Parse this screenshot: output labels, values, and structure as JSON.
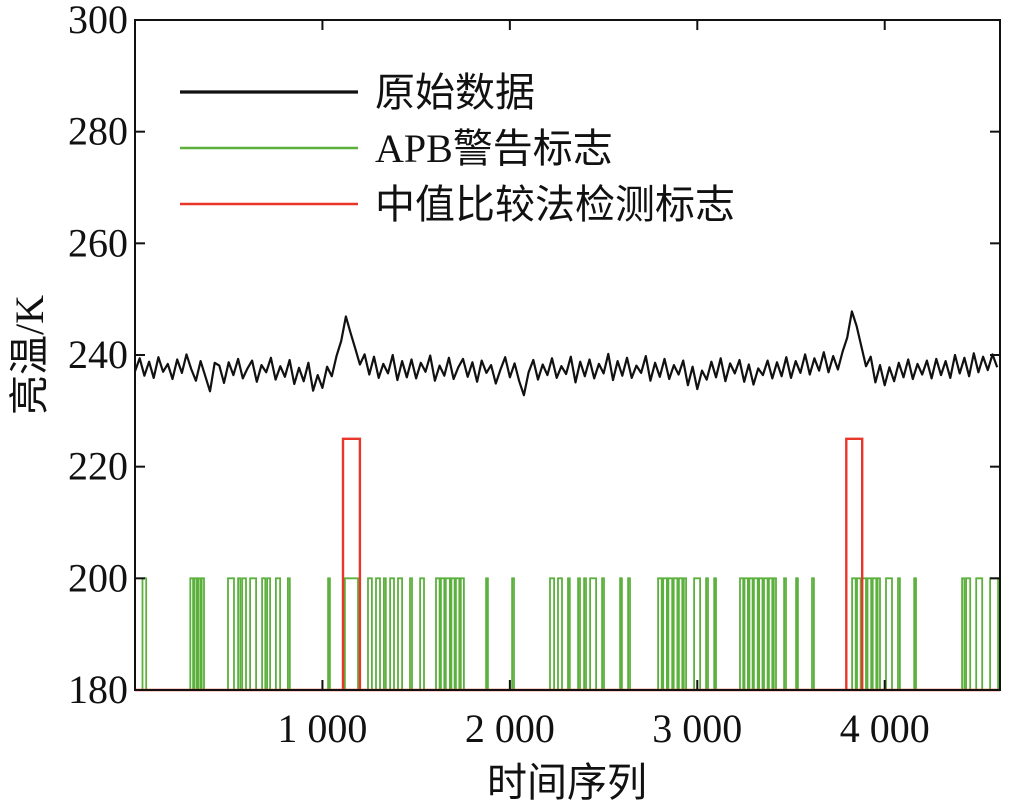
{
  "chart_data": {
    "type": "line",
    "xlabel": "时间序列",
    "ylabel": "亮温/K",
    "xlim": [
      0,
      4615
    ],
    "ylim": [
      180,
      300
    ],
    "xticks": [
      1000,
      2000,
      3000,
      4000
    ],
    "xtick_labels": [
      "1 000",
      "2 000",
      "3 000",
      "4 000"
    ],
    "yticks": [
      180,
      200,
      220,
      240,
      260,
      280,
      300
    ],
    "ytick_labels": [
      "180",
      "200",
      "220",
      "240",
      "260",
      "280",
      "300"
    ],
    "grid": false,
    "legend_position": "top-left",
    "series": [
      {
        "name": "原始数据",
        "type": "line",
        "color": "#111111",
        "x": [
          0,
          25,
          50,
          75,
          100,
          125,
          150,
          175,
          200,
          225,
          250,
          275,
          300,
          325,
          350,
          375,
          400,
          425,
          450,
          475,
          500,
          525,
          550,
          575,
          600,
          625,
          650,
          675,
          700,
          725,
          750,
          775,
          800,
          825,
          850,
          875,
          900,
          925,
          950,
          975,
          1000,
          1025,
          1050,
          1075,
          1100,
          1125,
          1150,
          1175,
          1200,
          1225,
          1250,
          1275,
          1300,
          1325,
          1350,
          1375,
          1400,
          1425,
          1450,
          1475,
          1500,
          1525,
          1550,
          1575,
          1600,
          1625,
          1650,
          1675,
          1700,
          1725,
          1750,
          1775,
          1800,
          1825,
          1850,
          1875,
          1900,
          1925,
          1950,
          1975,
          2000,
          2025,
          2050,
          2075,
          2100,
          2125,
          2150,
          2175,
          2200,
          2225,
          2250,
          2275,
          2300,
          2325,
          2350,
          2375,
          2400,
          2425,
          2450,
          2475,
          2500,
          2525,
          2550,
          2575,
          2600,
          2625,
          2650,
          2675,
          2700,
          2725,
          2750,
          2775,
          2800,
          2825,
          2850,
          2875,
          2900,
          2925,
          2950,
          2975,
          3000,
          3025,
          3050,
          3075,
          3100,
          3125,
          3150,
          3175,
          3200,
          3225,
          3250,
          3275,
          3300,
          3325,
          3350,
          3375,
          3400,
          3425,
          3450,
          3475,
          3500,
          3525,
          3550,
          3575,
          3600,
          3625,
          3650,
          3675,
          3700,
          3725,
          3750,
          3775,
          3800,
          3825,
          3850,
          3875,
          3900,
          3925,
          3950,
          3975,
          4000,
          4025,
          4050,
          4075,
          4100,
          4125,
          4150,
          4175,
          4200,
          4225,
          4250,
          4275,
          4300,
          4325,
          4350,
          4375,
          4400,
          4425,
          4450,
          4475,
          4500,
          4525,
          4550,
          4575,
          4600
        ],
        "y": [
          237.1,
          239.4,
          236.3,
          238.8,
          235.9,
          239.6,
          237.0,
          238.4,
          235.7,
          239.2,
          236.8,
          240.1,
          237.5,
          235.4,
          238.9,
          236.2,
          233.5,
          238.6,
          238.1,
          235.0,
          238.7,
          236.4,
          239.3,
          235.8,
          237.6,
          239.0,
          235.2,
          238.2,
          236.9,
          239.5,
          235.6,
          238.0,
          236.1,
          239.1,
          234.8,
          237.7,
          235.3,
          238.6,
          233.6,
          236.4,
          234.1,
          237.9,
          236.2,
          239.8,
          242.5,
          246.9,
          244.0,
          241.2,
          238.3,
          240.1,
          236.5,
          239.7,
          235.9,
          238.4,
          236.7,
          240.0,
          235.5,
          238.9,
          236.0,
          239.2,
          235.8,
          238.6,
          237.0,
          239.9,
          235.4,
          238.1,
          236.3,
          239.5,
          235.7,
          237.8,
          239.3,
          236.1,
          238.7,
          235.2,
          239.0,
          236.8,
          238.2,
          234.9,
          237.4,
          239.6,
          236.0,
          238.5,
          235.3,
          232.8,
          236.9,
          239.1,
          235.6,
          238.3,
          236.4,
          239.4,
          235.9,
          238.0,
          236.6,
          239.7,
          235.1,
          238.8,
          236.2,
          239.2,
          235.8,
          238.4,
          236.7,
          240.2,
          235.5,
          238.9,
          236.3,
          239.5,
          235.9,
          238.1,
          236.8,
          239.8,
          235.4,
          238.6,
          236.1,
          239.3,
          235.7,
          238.2,
          236.5,
          239.0,
          234.6,
          237.9,
          233.9,
          237.2,
          235.6,
          238.8,
          236.0,
          239.4,
          235.3,
          238.5,
          236.7,
          239.1,
          235.2,
          238.3,
          234.7,
          237.6,
          236.4,
          239.0,
          235.8,
          238.7,
          236.2,
          239.6,
          235.9,
          238.9,
          236.8,
          240.1,
          236.5,
          239.4,
          237.2,
          240.5,
          236.9,
          239.8,
          237.4,
          240.6,
          243.1,
          247.8,
          245.2,
          241.6,
          238.0,
          239.7,
          235.1,
          238.2,
          234.6,
          237.8,
          235.3,
          238.6,
          236.0,
          239.2,
          235.7,
          238.4,
          236.5,
          239.0,
          235.8,
          239.3,
          236.4,
          238.9,
          235.9,
          240.0,
          236.7,
          239.5,
          236.2,
          240.3,
          236.9,
          239.7,
          237.3,
          240.1,
          237.8
        ]
      },
      {
        "name": "APB警告标志",
        "type": "step",
        "color": "#5cb03e",
        "base": 180,
        "level": 200,
        "intervals": [
          [
            40,
            60
          ],
          [
            295,
            310
          ],
          [
            318,
            330
          ],
          [
            338,
            350
          ],
          [
            356,
            368
          ],
          [
            496,
            528
          ],
          [
            550,
            562
          ],
          [
            572,
            592
          ],
          [
            614,
            646
          ],
          [
            678,
            695
          ],
          [
            705,
            721
          ],
          [
            752,
            774
          ],
          [
            816,
            826
          ],
          [
            1030,
            1040
          ],
          [
            1120,
            1190
          ],
          [
            1243,
            1264
          ],
          [
            1286,
            1307
          ],
          [
            1328,
            1338
          ],
          [
            1361,
            1382
          ],
          [
            1403,
            1425
          ],
          [
            1467,
            1478
          ],
          [
            1521,
            1542
          ],
          [
            1606,
            1625
          ],
          [
            1632,
            1650
          ],
          [
            1658,
            1680
          ],
          [
            1688,
            1705
          ],
          [
            1712,
            1730
          ],
          [
            1738,
            1755
          ],
          [
            1873,
            1883
          ],
          [
            2012,
            2022
          ],
          [
            2214,
            2236
          ],
          [
            2257,
            2278
          ],
          [
            2310,
            2320
          ],
          [
            2364,
            2374
          ],
          [
            2396,
            2406
          ],
          [
            2428,
            2460
          ],
          [
            2492,
            2502
          ],
          [
            2588,
            2598
          ],
          [
            2631,
            2641
          ],
          [
            2791,
            2810
          ],
          [
            2818,
            2838
          ],
          [
            2846,
            2866
          ],
          [
            2874,
            2894
          ],
          [
            2902,
            2920
          ],
          [
            2928,
            2940
          ],
          [
            2983,
            3015
          ],
          [
            3047,
            3057
          ],
          [
            3090,
            3100
          ],
          [
            3228,
            3245
          ],
          [
            3252,
            3270
          ],
          [
            3278,
            3295
          ],
          [
            3302,
            3322
          ],
          [
            3330,
            3348
          ],
          [
            3356,
            3375
          ],
          [
            3382,
            3400
          ],
          [
            3408,
            3420
          ],
          [
            3463,
            3473
          ],
          [
            3527,
            3537
          ],
          [
            3612,
            3622
          ],
          [
            3826,
            3845
          ],
          [
            3852,
            3872
          ],
          [
            3880,
            3900
          ],
          [
            3908,
            3928
          ],
          [
            3936,
            3955
          ],
          [
            3962,
            3975
          ],
          [
            4007,
            4039
          ],
          [
            4071,
            4081
          ],
          [
            4157,
            4167
          ],
          [
            4413,
            4425
          ],
          [
            4434,
            4456
          ],
          [
            4488,
            4520
          ],
          [
            4562,
            4605
          ]
        ]
      },
      {
        "name": "中值比较法检测标志",
        "type": "step",
        "color": "#e8372a",
        "base": 180,
        "level": 225,
        "intervals": [
          [
            1110,
            1200
          ],
          [
            3795,
            3880
          ]
        ]
      }
    ]
  }
}
